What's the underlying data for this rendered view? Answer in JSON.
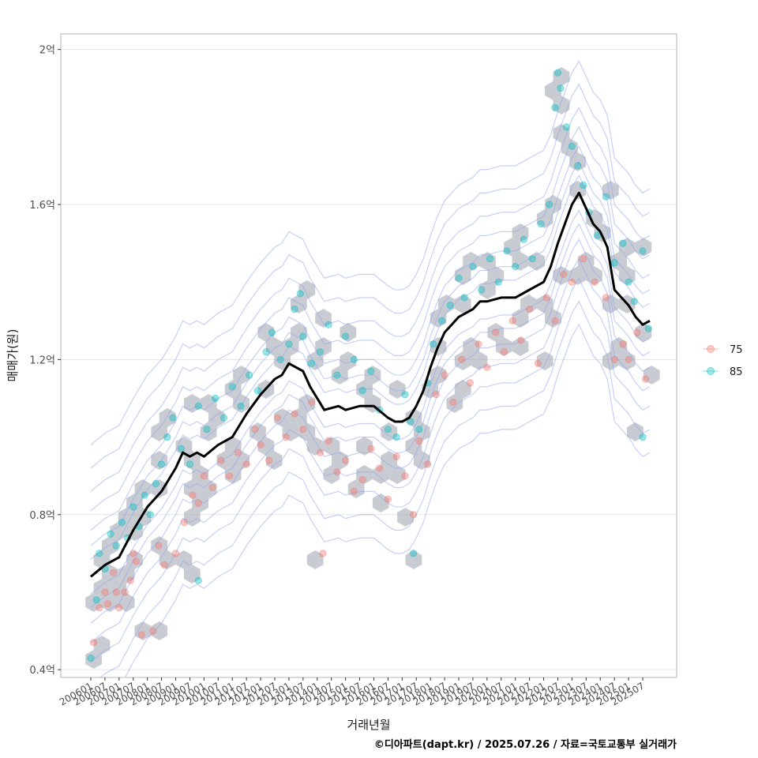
{
  "chart_data": {
    "type": "scatter",
    "title": "",
    "xlabel": "거래년월",
    "ylabel": "매매가(원)",
    "caption": "©디아파트(dapt.kr) / 2025.07.26 / 자료=국토교통부 실거래가",
    "ylim": [
      0.38,
      2.04
    ],
    "y_ticks": [
      {
        "value": 0.4,
        "label": "0.4억"
      },
      {
        "value": 0.8,
        "label": "0.8억"
      },
      {
        "value": 1.2,
        "label": "1.2억"
      },
      {
        "value": 1.6,
        "label": "1.6억"
      },
      {
        "value": 2.0,
        "label": "2억"
      }
    ],
    "x_start": "2006-01",
    "x_end": "2025-07",
    "x_ticks": [
      "200601",
      "200607",
      "200701",
      "200707",
      "200801",
      "200807",
      "200901",
      "200907",
      "201001",
      "201007",
      "201101",
      "201107",
      "201201",
      "201207",
      "201301",
      "201307",
      "201401",
      "201407",
      "201501",
      "201507",
      "201601",
      "201607",
      "201701",
      "201707",
      "201801",
      "201807",
      "201901",
      "201907",
      "202001",
      "202007",
      "202101",
      "202107",
      "202201",
      "202207",
      "202301",
      "202307",
      "202401",
      "202407",
      "202501",
      "202507"
    ],
    "legend": {
      "position": "right",
      "entries": [
        {
          "label": "75",
          "color": "#F8766D"
        },
        {
          "label": "85",
          "color": "#00BFC4"
        }
      ]
    },
    "trend_line": {
      "name": "moving average",
      "color": "#000000",
      "points": [
        [
          2006.0,
          0.64
        ],
        [
          2006.5,
          0.67
        ],
        [
          2007.0,
          0.69
        ],
        [
          2007.5,
          0.76
        ],
        [
          2008.0,
          0.82
        ],
        [
          2008.5,
          0.86
        ],
        [
          2009.0,
          0.92
        ],
        [
          2009.25,
          0.96
        ],
        [
          2009.5,
          0.95
        ],
        [
          2009.75,
          0.96
        ],
        [
          2010.0,
          0.95
        ],
        [
          2010.5,
          0.98
        ],
        [
          2011.0,
          1.0
        ],
        [
          2011.5,
          1.06
        ],
        [
          2012.0,
          1.11
        ],
        [
          2012.5,
          1.15
        ],
        [
          2012.75,
          1.16
        ],
        [
          2013.0,
          1.19
        ],
        [
          2013.5,
          1.17
        ],
        [
          2013.75,
          1.13
        ],
        [
          2014.0,
          1.1
        ],
        [
          2014.25,
          1.07
        ],
        [
          2014.75,
          1.08
        ],
        [
          2015.0,
          1.07
        ],
        [
          2015.5,
          1.08
        ],
        [
          2016.0,
          1.08
        ],
        [
          2016.5,
          1.05
        ],
        [
          2016.75,
          1.04
        ],
        [
          2017.0,
          1.04
        ],
        [
          2017.25,
          1.05
        ],
        [
          2017.5,
          1.08
        ],
        [
          2017.75,
          1.12
        ],
        [
          2018.0,
          1.18
        ],
        [
          2018.25,
          1.23
        ],
        [
          2018.5,
          1.27
        ],
        [
          2019.0,
          1.31
        ],
        [
          2019.5,
          1.33
        ],
        [
          2019.75,
          1.35
        ],
        [
          2020.0,
          1.35
        ],
        [
          2020.5,
          1.36
        ],
        [
          2021.0,
          1.36
        ],
        [
          2021.5,
          1.38
        ],
        [
          2022.0,
          1.4
        ],
        [
          2022.25,
          1.44
        ],
        [
          2022.5,
          1.5
        ],
        [
          2022.75,
          1.55
        ],
        [
          2023.0,
          1.6
        ],
        [
          2023.25,
          1.63
        ],
        [
          2023.5,
          1.59
        ],
        [
          2023.75,
          1.55
        ],
        [
          2024.0,
          1.53
        ],
        [
          2024.25,
          1.49
        ],
        [
          2024.5,
          1.38
        ],
        [
          2024.75,
          1.36
        ],
        [
          2025.0,
          1.34
        ],
        [
          2025.25,
          1.31
        ],
        [
          2025.5,
          1.29
        ],
        [
          2025.75,
          1.3
        ]
      ]
    },
    "series": [
      {
        "name": "75",
        "color": "#F8766D",
        "points": [
          [
            2006.1,
            0.47
          ],
          [
            2006.3,
            0.56
          ],
          [
            2006.5,
            0.6
          ],
          [
            2006.6,
            0.57
          ],
          [
            2006.8,
            0.65
          ],
          [
            2007.0,
            0.56
          ],
          [
            2007.2,
            0.6
          ],
          [
            2007.4,
            0.63
          ],
          [
            2007.6,
            0.68
          ],
          [
            2007.8,
            0.49
          ],
          [
            2008.2,
            0.5
          ],
          [
            2008.4,
            0.72
          ],
          [
            2008.6,
            0.67
          ],
          [
            2009.0,
            0.7
          ],
          [
            2009.3,
            0.78
          ],
          [
            2009.6,
            0.85
          ],
          [
            2009.8,
            0.83
          ],
          [
            2010.0,
            0.9
          ],
          [
            2010.3,
            0.87
          ],
          [
            2010.6,
            0.94
          ],
          [
            2010.9,
            0.9
          ],
          [
            2011.2,
            0.96
          ],
          [
            2011.5,
            0.93
          ],
          [
            2011.8,
            1.02
          ],
          [
            2012.0,
            0.98
          ],
          [
            2012.3,
            0.94
          ],
          [
            2012.6,
            1.05
          ],
          [
            2012.9,
            1.0
          ],
          [
            2013.2,
            1.06
          ],
          [
            2013.5,
            1.02
          ],
          [
            2013.8,
            1.09
          ],
          [
            2014.1,
            0.96
          ],
          [
            2014.4,
            0.99
          ],
          [
            2014.7,
            0.91
          ],
          [
            2015.0,
            0.94
          ],
          [
            2015.3,
            0.86
          ],
          [
            2015.6,
            0.89
          ],
          [
            2015.9,
            0.97
          ],
          [
            2016.2,
            0.92
          ],
          [
            2016.5,
            0.84
          ],
          [
            2016.8,
            0.95
          ],
          [
            2017.1,
            0.9
          ],
          [
            2017.4,
            0.8
          ],
          [
            2017.6,
            0.99
          ],
          [
            2017.9,
            0.93
          ],
          [
            2018.2,
            1.11
          ],
          [
            2018.5,
            1.16
          ],
          [
            2018.8,
            1.09
          ],
          [
            2019.1,
            1.2
          ],
          [
            2019.4,
            1.14
          ],
          [
            2019.7,
            1.24
          ],
          [
            2020.0,
            1.18
          ],
          [
            2020.3,
            1.27
          ],
          [
            2020.6,
            1.22
          ],
          [
            2020.9,
            1.3
          ],
          [
            2021.2,
            1.25
          ],
          [
            2021.5,
            1.33
          ],
          [
            2021.8,
            1.19
          ],
          [
            2022.1,
            1.36
          ],
          [
            2022.4,
            1.3
          ],
          [
            2022.7,
            1.42
          ],
          [
            2023.0,
            1.4
          ],
          [
            2023.4,
            1.46
          ],
          [
            2023.8,
            1.4
          ],
          [
            2024.2,
            1.36
          ],
          [
            2024.5,
            1.2
          ],
          [
            2024.8,
            1.24
          ],
          [
            2025.0,
            1.2
          ],
          [
            2025.3,
            1.27
          ],
          [
            2025.6,
            1.15
          ],
          [
            2014.2,
            0.7
          ],
          [
            2006.9,
            0.6
          ],
          [
            2007.5,
            0.7
          ]
        ]
      },
      {
        "name": "85",
        "color": "#00BFC4",
        "points": [
          [
            2006.0,
            0.43
          ],
          [
            2006.2,
            0.58
          ],
          [
            2006.3,
            0.7
          ],
          [
            2006.5,
            0.66
          ],
          [
            2006.7,
            0.75
          ],
          [
            2006.9,
            0.72
          ],
          [
            2007.1,
            0.78
          ],
          [
            2007.3,
            0.74
          ],
          [
            2007.5,
            0.82
          ],
          [
            2007.7,
            0.77
          ],
          [
            2007.9,
            0.85
          ],
          [
            2008.1,
            0.8
          ],
          [
            2008.3,
            0.88
          ],
          [
            2008.5,
            0.93
          ],
          [
            2008.7,
            1.0
          ],
          [
            2008.9,
            1.05
          ],
          [
            2009.2,
            0.97
          ],
          [
            2009.5,
            0.93
          ],
          [
            2009.8,
            1.08
          ],
          [
            2010.1,
            1.02
          ],
          [
            2010.4,
            1.1
          ],
          [
            2010.7,
            1.05
          ],
          [
            2011.0,
            1.13
          ],
          [
            2011.3,
            1.08
          ],
          [
            2011.6,
            1.16
          ],
          [
            2011.9,
            1.12
          ],
          [
            2012.2,
            1.22
          ],
          [
            2012.4,
            1.27
          ],
          [
            2012.7,
            1.2
          ],
          [
            2013.0,
            1.24
          ],
          [
            2013.2,
            1.33
          ],
          [
            2013.5,
            1.26
          ],
          [
            2013.8,
            1.19
          ],
          [
            2014.1,
            1.22
          ],
          [
            2014.4,
            1.29
          ],
          [
            2014.7,
            1.16
          ],
          [
            2015.0,
            1.26
          ],
          [
            2015.3,
            1.2
          ],
          [
            2015.6,
            1.12
          ],
          [
            2015.9,
            1.17
          ],
          [
            2016.2,
            1.07
          ],
          [
            2016.5,
            1.02
          ],
          [
            2016.8,
            1.0
          ],
          [
            2017.1,
            1.11
          ],
          [
            2017.3,
            1.04
          ],
          [
            2017.6,
            1.02
          ],
          [
            2017.9,
            1.14
          ],
          [
            2018.1,
            1.24
          ],
          [
            2018.4,
            1.3
          ],
          [
            2018.7,
            1.34
          ],
          [
            2019.0,
            1.41
          ],
          [
            2019.2,
            1.36
          ],
          [
            2019.5,
            1.44
          ],
          [
            2019.8,
            1.38
          ],
          [
            2020.1,
            1.46
          ],
          [
            2020.4,
            1.4
          ],
          [
            2020.7,
            1.48
          ],
          [
            2021.0,
            1.44
          ],
          [
            2021.3,
            1.51
          ],
          [
            2021.6,
            1.46
          ],
          [
            2021.9,
            1.55
          ],
          [
            2022.2,
            1.6
          ],
          [
            2022.4,
            1.85
          ],
          [
            2022.6,
            1.9
          ],
          [
            2022.8,
            1.8
          ],
          [
            2023.0,
            1.75
          ],
          [
            2023.2,
            1.7
          ],
          [
            2023.4,
            1.65
          ],
          [
            2023.6,
            1.58
          ],
          [
            2023.9,
            1.52
          ],
          [
            2024.2,
            1.62
          ],
          [
            2024.5,
            1.45
          ],
          [
            2024.8,
            1.5
          ],
          [
            2025.0,
            1.4
          ],
          [
            2025.2,
            1.35
          ],
          [
            2025.5,
            1.48
          ],
          [
            2025.7,
            1.28
          ],
          [
            2025.5,
            1.0
          ],
          [
            2017.4,
            0.7
          ],
          [
            2022.5,
            1.94
          ],
          [
            2009.8,
            0.63
          ],
          [
            2013.4,
            1.37
          ]
        ]
      }
    ]
  }
}
